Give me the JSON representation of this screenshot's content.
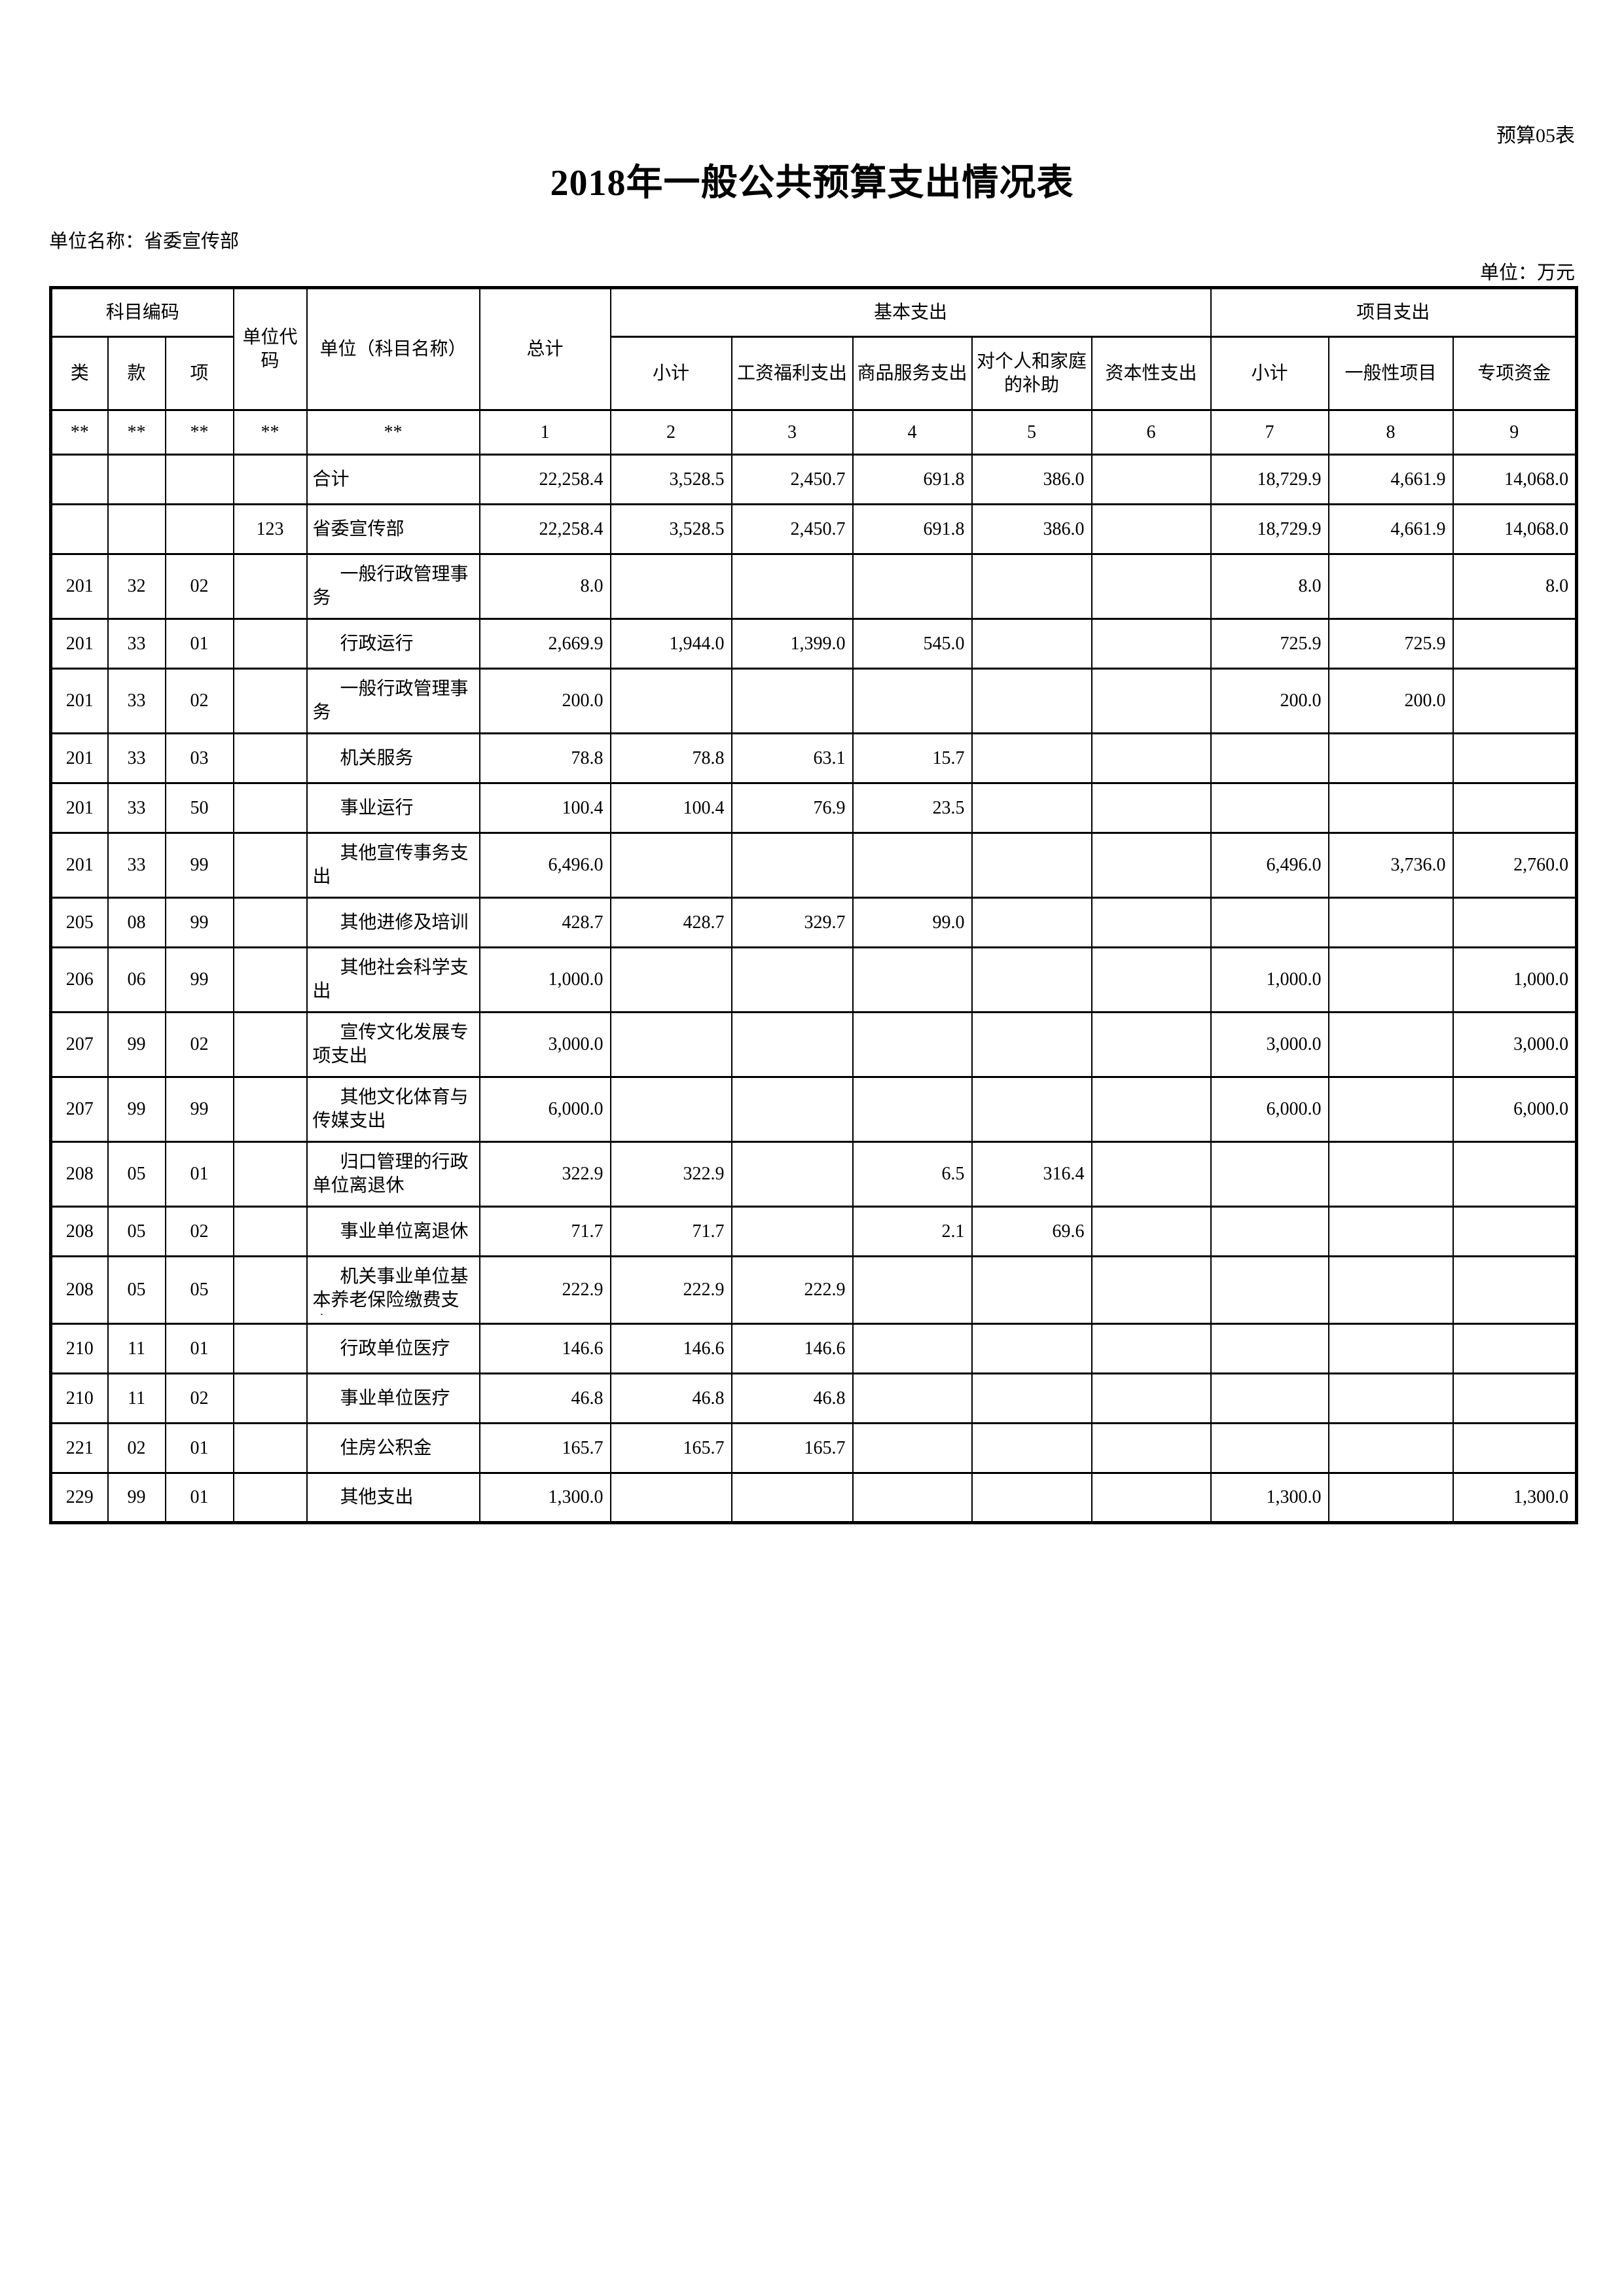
{
  "meta": {
    "form_number": "预算05表",
    "title": "2018年一般公共预算支出情况表",
    "unit_name": "单位名称：省委宣传部",
    "currency_unit": "单位：万元"
  },
  "table": {
    "header": {
      "subject_code": "科目编码",
      "class": "类",
      "section": "款",
      "item": "项",
      "unit_code": "单位代码",
      "unit_name": "单位（科目名称）",
      "total": "总计",
      "basic": "基本支出",
      "basic_cols": [
        "小计",
        "工资福利支出",
        "商品服务支出",
        "对个人和家庭的补助",
        "资本性支出"
      ],
      "project": "项目支出",
      "project_cols": [
        "小计",
        "一般性项目",
        "专项资金"
      ],
      "code_row": [
        "**",
        "**",
        "**",
        "**",
        "**",
        "1",
        "2",
        "3",
        "4",
        "5",
        "6",
        "7",
        "8",
        "9"
      ]
    },
    "rows": [
      {
        "class_code": "",
        "section_code": "",
        "item_code": "",
        "unit_code": "",
        "name": "合计",
        "indent": false,
        "values": [
          "22,258.4",
          "3,528.5",
          "2,450.7",
          "691.8",
          "386.0",
          "",
          "18,729.9",
          "4,661.9",
          "14,068.0"
        ]
      },
      {
        "class_code": "",
        "section_code": "",
        "item_code": "",
        "unit_code": "123",
        "name": "省委宣传部",
        "indent": false,
        "values": [
          "22,258.4",
          "3,528.5",
          "2,450.7",
          "691.8",
          "386.0",
          "",
          "18,729.9",
          "4,661.9",
          "14,068.0"
        ]
      },
      {
        "class_code": "201",
        "section_code": "32",
        "item_code": "02",
        "unit_code": "",
        "name": "一般行政管理事务",
        "indent": true,
        "values": [
          "8.0",
          "",
          "",
          "",
          "",
          "",
          "8.0",
          "",
          "8.0"
        ]
      },
      {
        "class_code": "201",
        "section_code": "33",
        "item_code": "01",
        "unit_code": "",
        "name": "行政运行",
        "indent": true,
        "values": [
          "2,669.9",
          "1,944.0",
          "1,399.0",
          "545.0",
          "",
          "",
          "725.9",
          "725.9",
          ""
        ]
      },
      {
        "class_code": "201",
        "section_code": "33",
        "item_code": "02",
        "unit_code": "",
        "name": "一般行政管理事务",
        "indent": true,
        "values": [
          "200.0",
          "",
          "",
          "",
          "",
          "",
          "200.0",
          "200.0",
          ""
        ]
      },
      {
        "class_code": "201",
        "section_code": "33",
        "item_code": "03",
        "unit_code": "",
        "name": "机关服务",
        "indent": true,
        "values": [
          "78.8",
          "78.8",
          "63.1",
          "15.7",
          "",
          "",
          "",
          "",
          ""
        ]
      },
      {
        "class_code": "201",
        "section_code": "33",
        "item_code": "50",
        "unit_code": "",
        "name": "事业运行",
        "indent": true,
        "values": [
          "100.4",
          "100.4",
          "76.9",
          "23.5",
          "",
          "",
          "",
          "",
          ""
        ]
      },
      {
        "class_code": "201",
        "section_code": "33",
        "item_code": "99",
        "unit_code": "",
        "name": "其他宣传事务支出",
        "indent": true,
        "values": [
          "6,496.0",
          "",
          "",
          "",
          "",
          "",
          "6,496.0",
          "3,736.0",
          "2,760.0"
        ]
      },
      {
        "class_code": "205",
        "section_code": "08",
        "item_code": "99",
        "unit_code": "",
        "name": "其他进修及培训",
        "indent": true,
        "values": [
          "428.7",
          "428.7",
          "329.7",
          "99.0",
          "",
          "",
          "",
          "",
          ""
        ]
      },
      {
        "class_code": "206",
        "section_code": "06",
        "item_code": "99",
        "unit_code": "",
        "name": "其他社会科学支出",
        "indent": true,
        "values": [
          "1,000.0",
          "",
          "",
          "",
          "",
          "",
          "1,000.0",
          "",
          "1,000.0"
        ]
      },
      {
        "class_code": "207",
        "section_code": "99",
        "item_code": "02",
        "unit_code": "",
        "name": "宣传文化发展专项支出",
        "indent": true,
        "values": [
          "3,000.0",
          "",
          "",
          "",
          "",
          "",
          "3,000.0",
          "",
          "3,000.0"
        ]
      },
      {
        "class_code": "207",
        "section_code": "99",
        "item_code": "99",
        "unit_code": "",
        "name": "其他文化体育与传媒支出",
        "indent": true,
        "values": [
          "6,000.0",
          "",
          "",
          "",
          "",
          "",
          "6,000.0",
          "",
          "6,000.0"
        ]
      },
      {
        "class_code": "208",
        "section_code": "05",
        "item_code": "01",
        "unit_code": "",
        "name": "归口管理的行政单位离退休",
        "indent": true,
        "values": [
          "322.9",
          "322.9",
          "",
          "6.5",
          "316.4",
          "",
          "",
          "",
          ""
        ]
      },
      {
        "class_code": "208",
        "section_code": "05",
        "item_code": "02",
        "unit_code": "",
        "name": "事业单位离退休",
        "indent": true,
        "values": [
          "71.7",
          "71.7",
          "",
          "2.1",
          "69.6",
          "",
          "",
          "",
          ""
        ]
      },
      {
        "class_code": "208",
        "section_code": "05",
        "item_code": "05",
        "unit_code": "",
        "name": "机关事业单位基本养老保险缴费支出",
        "indent": true,
        "values": [
          "222.9",
          "222.9",
          "222.9",
          "",
          "",
          "",
          "",
          "",
          ""
        ]
      },
      {
        "class_code": "210",
        "section_code": "11",
        "item_code": "01",
        "unit_code": "",
        "name": "行政单位医疗",
        "indent": true,
        "values": [
          "146.6",
          "146.6",
          "146.6",
          "",
          "",
          "",
          "",
          "",
          ""
        ]
      },
      {
        "class_code": "210",
        "section_code": "11",
        "item_code": "02",
        "unit_code": "",
        "name": "事业单位医疗",
        "indent": true,
        "values": [
          "46.8",
          "46.8",
          "46.8",
          "",
          "",
          "",
          "",
          "",
          ""
        ]
      },
      {
        "class_code": "221",
        "section_code": "02",
        "item_code": "01",
        "unit_code": "",
        "name": "住房公积金",
        "indent": true,
        "values": [
          "165.7",
          "165.7",
          "165.7",
          "",
          "",
          "",
          "",
          "",
          ""
        ]
      },
      {
        "class_code": "229",
        "section_code": "99",
        "item_code": "01",
        "unit_code": "",
        "name": "其他支出",
        "indent": true,
        "values": [
          "1,300.0",
          "",
          "",
          "",
          "",
          "",
          "1,300.0",
          "",
          "1,300.0"
        ]
      }
    ]
  }
}
